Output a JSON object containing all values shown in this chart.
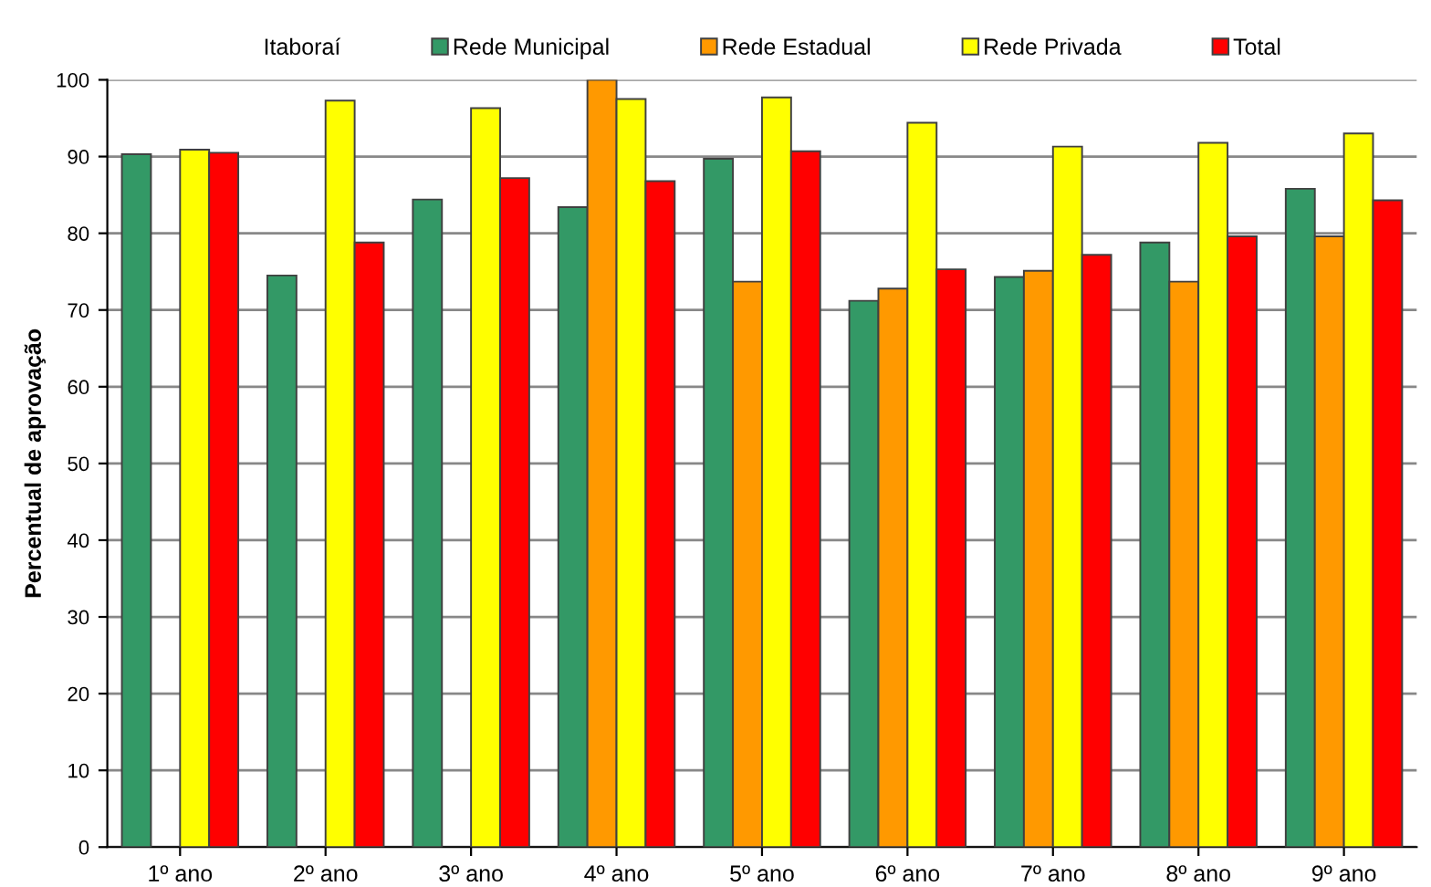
{
  "chart_data": {
    "type": "bar",
    "legend_title": "Itaboraí",
    "ylabel": "Percentual de aprovação",
    "categories": [
      "1º ano",
      "2º ano",
      "3º ano",
      "4º ano",
      "5º ano",
      "6º ano",
      "7º ano",
      "8º ano",
      "9º ano"
    ],
    "series": [
      {
        "name": "Rede Municipal",
        "color": "#339966",
        "values": [
          90.3,
          74.5,
          84.4,
          83.4,
          89.7,
          71.2,
          74.3,
          78.8,
          85.8
        ]
      },
      {
        "name": "Rede Estadual",
        "color": "#ff9900",
        "values": [
          null,
          null,
          null,
          100,
          73.7,
          72.8,
          75.1,
          73.7,
          79.6
        ]
      },
      {
        "name": "Rede Privada",
        "color": "#ffff00",
        "values": [
          90.9,
          97.3,
          96.3,
          97.5,
          97.7,
          94.4,
          91.3,
          91.8,
          93.0
        ]
      },
      {
        "name": "Total",
        "color": "#ff0000",
        "values": [
          90.5,
          78.8,
          87.2,
          86.8,
          90.7,
          75.3,
          77.2,
          79.6,
          84.3
        ]
      }
    ],
    "ylim": [
      0,
      100
    ],
    "yticks": [
      0,
      10,
      20,
      30,
      40,
      50,
      60,
      70,
      80,
      90,
      100
    ],
    "grid": "y",
    "legend": "top"
  }
}
